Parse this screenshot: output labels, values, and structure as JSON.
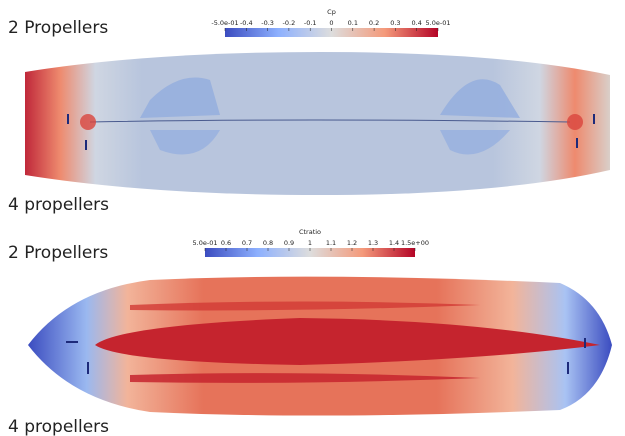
{
  "panels": [
    {
      "top_label": "2 Propellers",
      "bottom_label": "4 propellers",
      "colorbar": {
        "title": "Cp",
        "ticks": [
          "-5.0e-01",
          "-0.4",
          "-0.3",
          "-0.2",
          "-0.1",
          "0",
          "0.1",
          "0.2",
          "0.3",
          "0.4",
          "5.0e-01"
        ]
      }
    },
    {
      "top_label": "2 Propellers",
      "bottom_label": "4 propellers",
      "colorbar": {
        "title": "Ctratio",
        "ticks": [
          "5.0e-01",
          "0.6",
          "0.7",
          "0.8",
          "0.9",
          "1",
          "1.1",
          "1.2",
          "1.3",
          "1.4",
          "1.5e+00"
        ]
      }
    }
  ]
}
